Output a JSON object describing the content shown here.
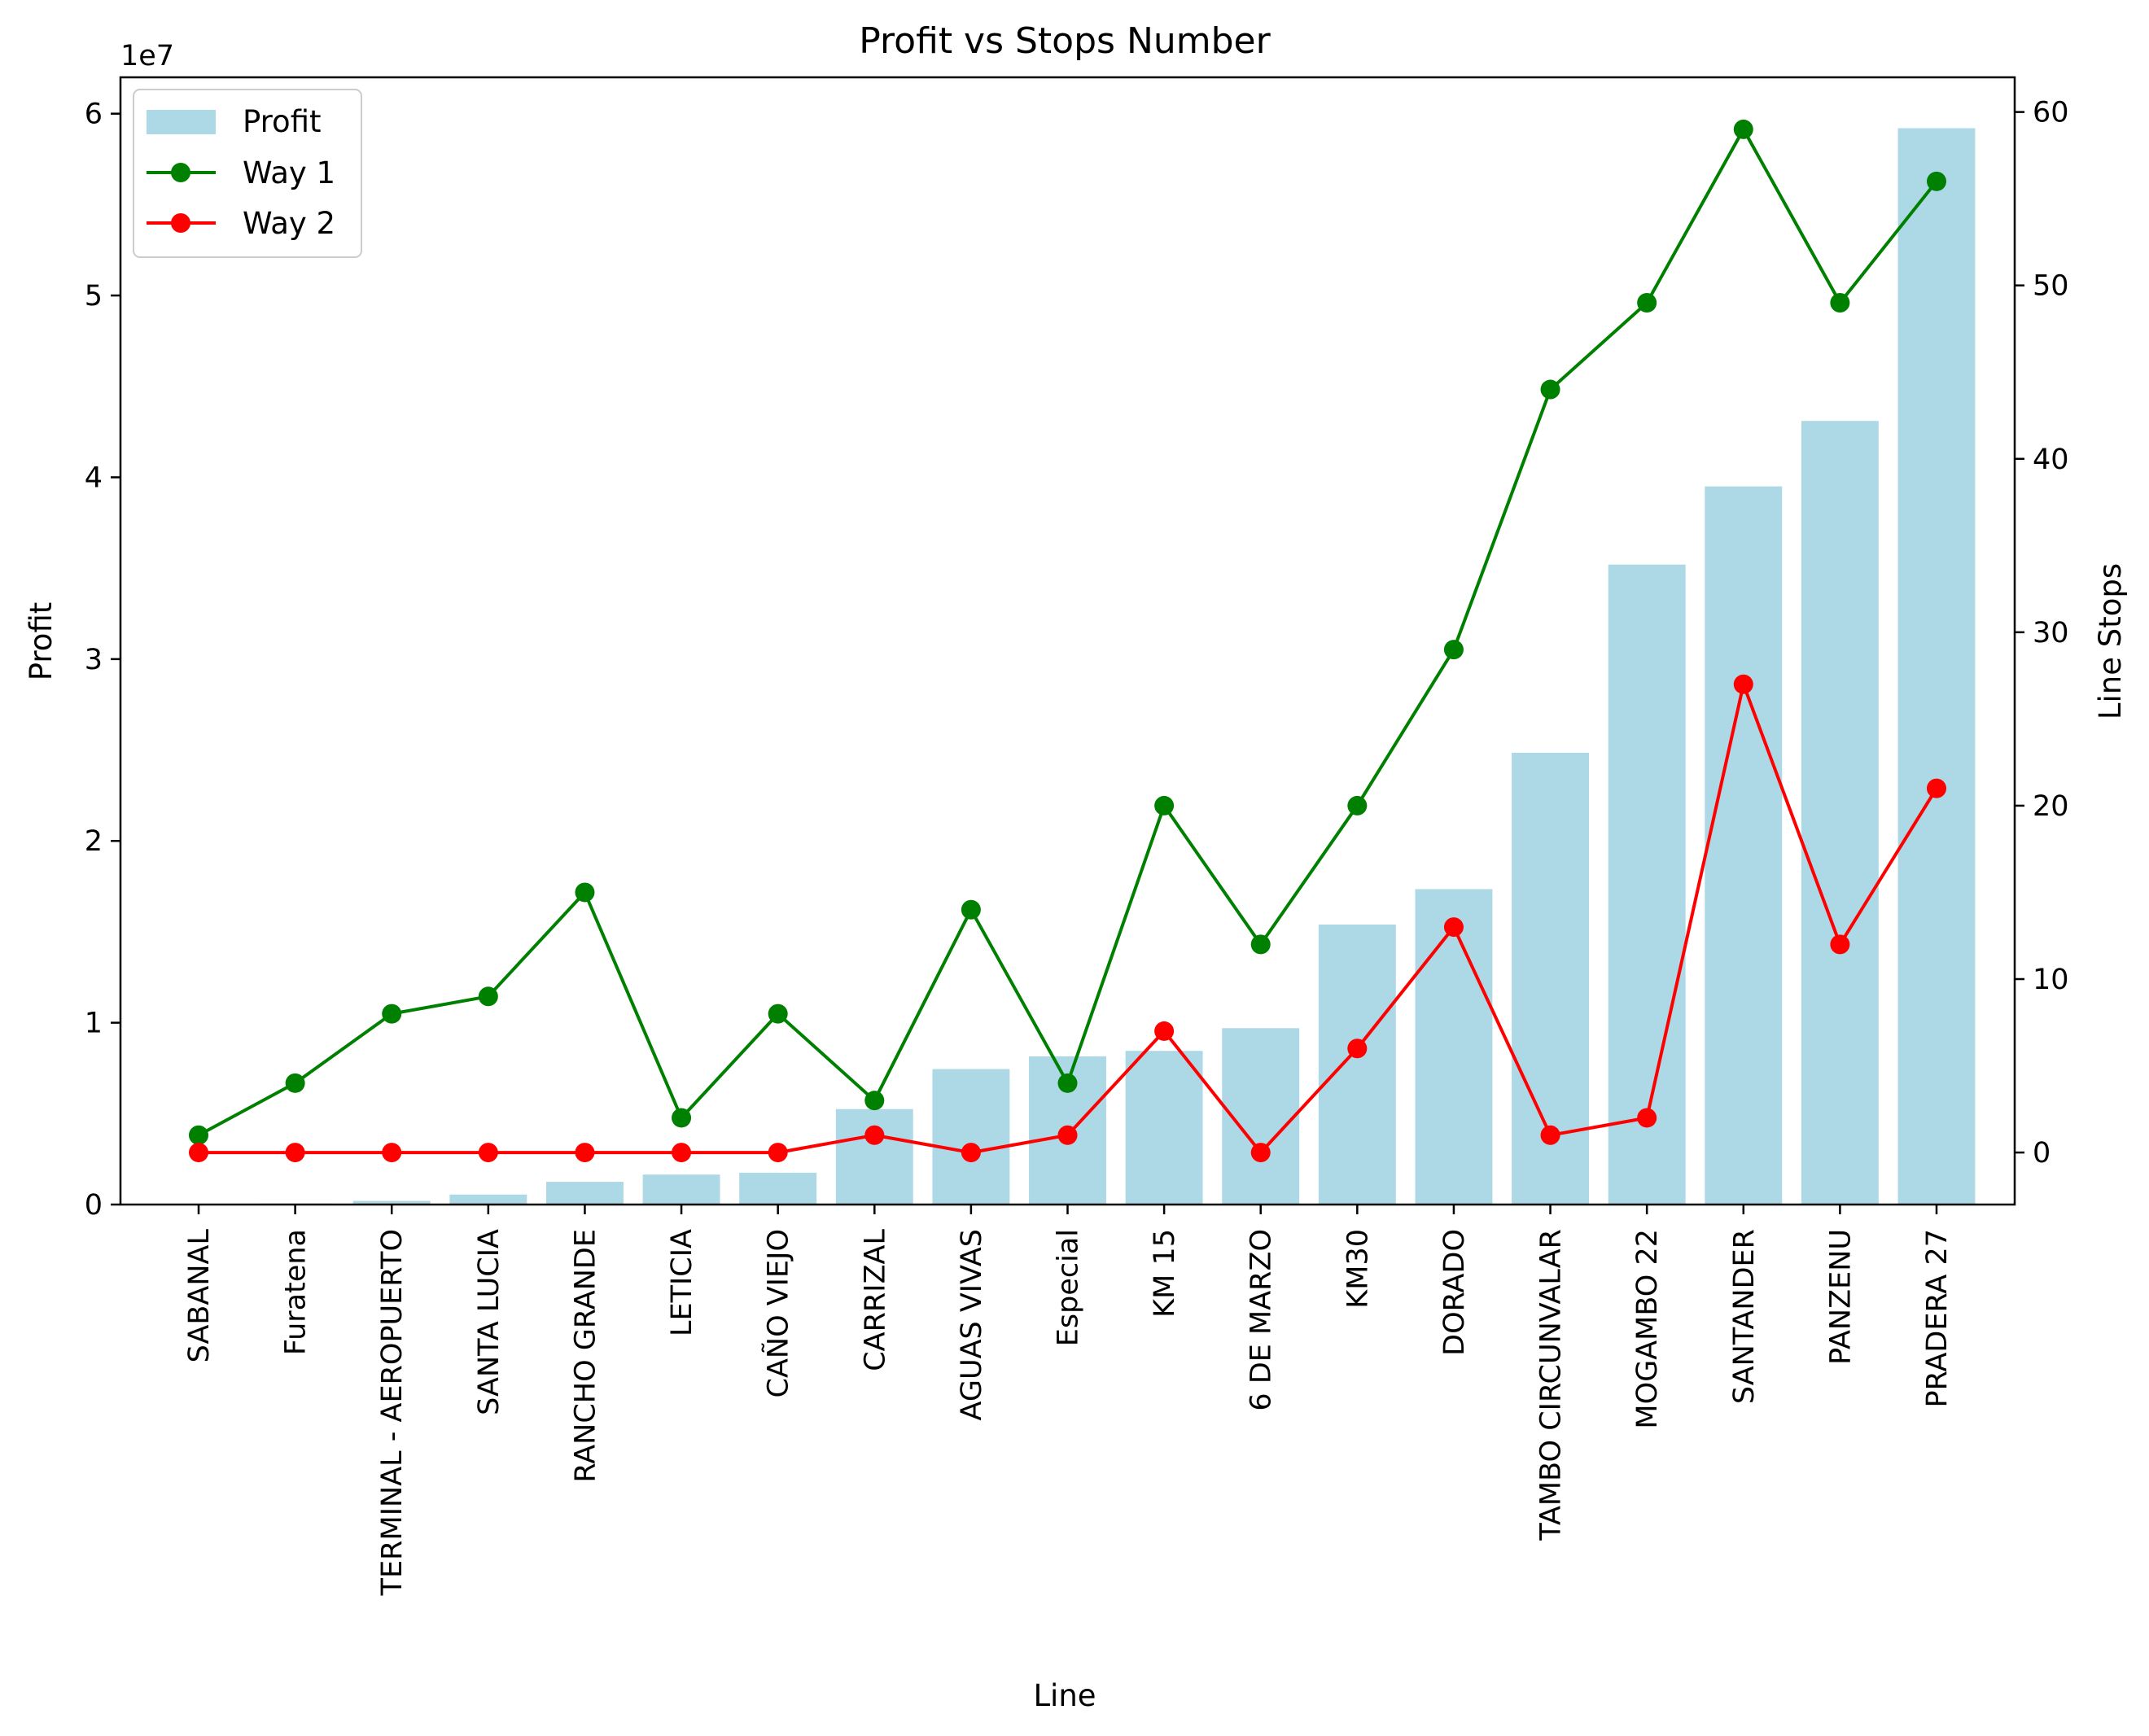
{
  "chart_data": {
    "type": "bar+line",
    "title": "Profit vs Stops Number",
    "xlabel": "Line",
    "ylabel": "Profit",
    "y2label": "Line Stops",
    "y_offset_text": "1e7",
    "ylim": [
      0,
      62000000
    ],
    "y2lim": [
      -3,
      62
    ],
    "y_ticks": [
      {
        "value": 0,
        "label": "0"
      },
      {
        "value": 10000000,
        "label": "1"
      },
      {
        "value": 20000000,
        "label": "2"
      },
      {
        "value": 30000000,
        "label": "3"
      },
      {
        "value": 40000000,
        "label": "4"
      },
      {
        "value": 50000000,
        "label": "5"
      },
      {
        "value": 60000000,
        "label": "6"
      }
    ],
    "y2_ticks": [
      {
        "value": 0,
        "label": "0"
      },
      {
        "value": 10,
        "label": "10"
      },
      {
        "value": 20,
        "label": "20"
      },
      {
        "value": 30,
        "label": "30"
      },
      {
        "value": 40,
        "label": "40"
      },
      {
        "value": 50,
        "label": "50"
      },
      {
        "value": 60,
        "label": "60"
      }
    ],
    "categories": [
      "SABANAL",
      "Furatena",
      "TERMINAL - AEROPUERTO",
      "SANTA LUCIA",
      "RANCHO GRANDE",
      "LETICIA",
      "CAÑO VIEJO",
      "CARRIZAL",
      "AGUAS VIVAS",
      "Especial",
      "KM 15",
      "6 DE MARZO",
      "KM30",
      "DORADO",
      "TAMBO CIRCUNVALAR",
      "MOGAMBO 22",
      "SANTANDER",
      "PANZENU",
      "PRADERA 27"
    ],
    "bar_series": {
      "name": "Profit",
      "color": "#add8e6",
      "axis": "left",
      "values": [
        0,
        50000,
        200000,
        550000,
        1250000,
        1650000,
        1750000,
        5250000,
        7450000,
        8150000,
        8450000,
        9700000,
        15400000,
        17350000,
        24850000,
        35200000,
        39500000,
        43100000,
        59200000
      ]
    },
    "line_series": [
      {
        "name": "Way 1",
        "color": "#008000",
        "axis": "right",
        "values": [
          1,
          4,
          8,
          9,
          15,
          2,
          8,
          3,
          14,
          4,
          20,
          12,
          20,
          29,
          44,
          49,
          59,
          49,
          56
        ]
      },
      {
        "name": "Way 2",
        "color": "#ff0000",
        "axis": "right",
        "values": [
          0,
          0,
          0,
          0,
          0,
          0,
          0,
          1,
          0,
          1,
          7,
          0,
          6,
          13,
          1,
          2,
          27,
          12,
          21
        ]
      }
    ],
    "legend": {
      "position": "top-left",
      "entries": [
        "Profit",
        "Way 1",
        "Way 2"
      ]
    },
    "grid": false
  }
}
